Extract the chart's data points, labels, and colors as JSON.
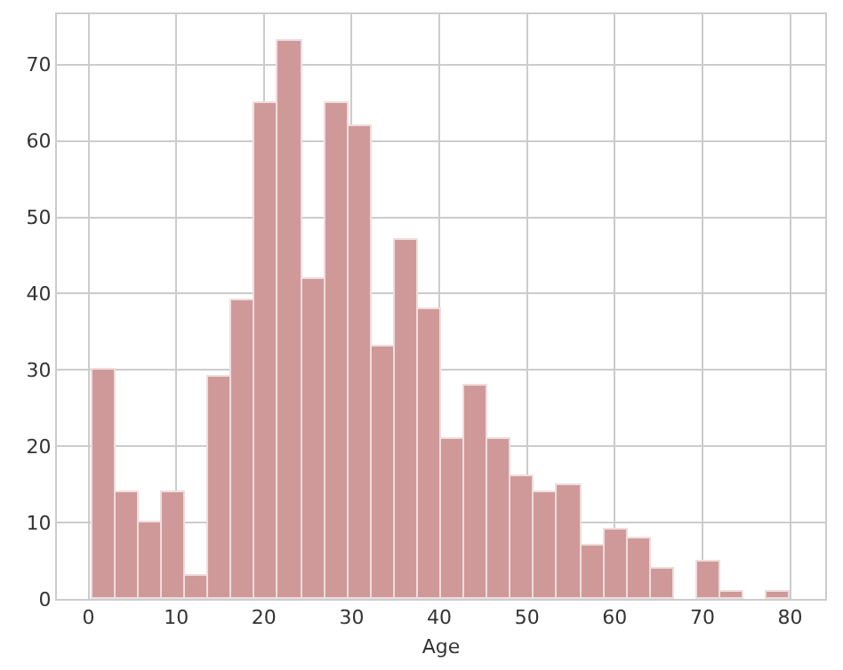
{
  "chart_data": {
    "type": "histogram",
    "xlabel": "Age",
    "bins": [
      0.42,
      3.07,
      5.73,
      8.38,
      11.03,
      13.68,
      16.34,
      18.99,
      21.64,
      24.29,
      26.95,
      29.6,
      32.25,
      34.9,
      37.56,
      40.21,
      42.86,
      45.52,
      48.17,
      50.82,
      53.47,
      56.13,
      58.78,
      61.43,
      64.08,
      66.74,
      69.39,
      72.04,
      74.69,
      77.35,
      80.0
    ],
    "values": [
      30,
      14,
      10,
      14,
      3,
      29,
      39,
      65,
      73,
      42,
      65,
      62,
      33,
      47,
      38,
      21,
      28,
      21,
      16,
      14,
      15,
      7,
      9,
      8,
      4,
      0,
      5,
      1,
      0,
      1
    ],
    "color": "#d09999",
    "xlim": [
      -3.6,
      84
    ],
    "xticks": [
      0,
      10,
      20,
      30,
      40,
      50,
      60,
      70,
      80
    ],
    "ylim": [
      0,
      76.6
    ],
    "yticks": [
      0,
      10,
      20,
      30,
      40,
      50,
      60,
      70
    ],
    "grid": true
  }
}
